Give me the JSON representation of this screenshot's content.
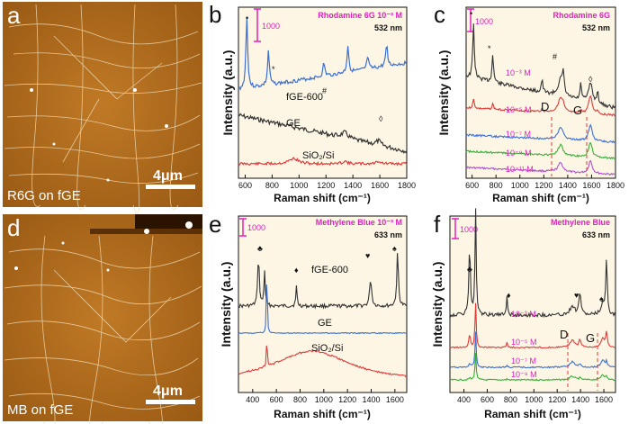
{
  "panels": {
    "a": {
      "letter": "a",
      "scale_text": "4μm",
      "caption": "R6G on fGE"
    },
    "d": {
      "letter": "d",
      "scale_text": "4μm",
      "caption": "MB on fGE"
    },
    "b": {
      "letter": "b",
      "title": "Rhodamine 6G 10⁻³ M",
      "wavelength": "532 nm",
      "scale_value": "1000"
    },
    "c": {
      "letter": "c",
      "title": "Rhodamine 6G",
      "wavelength": "532 nm",
      "scale_value": "1000"
    },
    "e": {
      "letter": "e",
      "title": "Methylene Blue 10⁻³ M",
      "wavelength": "633 nm",
      "scale_value": "1000"
    },
    "f": {
      "letter": "f",
      "title": "Methylene Blue",
      "wavelength": "633 nm",
      "scale_value": "1000"
    }
  },
  "colors": {
    "black": "#333333",
    "blue": "#3a6fd8",
    "red": "#e03a3a",
    "green": "#35b035",
    "purple": "#b050d0",
    "pink": "#e020c0",
    "afm_bg": "#b06a1c"
  },
  "chart_data": [
    {
      "id": "b",
      "type": "line",
      "xlabel": "Raman shift (cm⁻¹)",
      "ylabel": "Intensity (a.u.)",
      "xlim": [
        550,
        1800
      ],
      "xticks": [
        600,
        800,
        1000,
        1200,
        1400,
        1600,
        1800
      ],
      "series": [
        {
          "name": "fGE-600",
          "color": "blue"
        },
        {
          "name": "GE",
          "color": "black"
        },
        {
          "name": "SiO₂/Si",
          "color": "red"
        }
      ],
      "peak_labels": [
        "•",
        "*",
        "#",
        "◊"
      ]
    },
    {
      "id": "c",
      "type": "line",
      "xlabel": "Raman shift (cm⁻¹)",
      "ylabel": "Intensity (a.u.)",
      "xlim": [
        550,
        1800
      ],
      "xticks": [
        600,
        800,
        1000,
        1200,
        1400,
        1600,
        1800
      ],
      "series": [
        {
          "name": "10⁻³ M",
          "color": "black"
        },
        {
          "name": "10⁻⁵ M",
          "color": "red"
        },
        {
          "name": "10⁻⁷ M",
          "color": "blue"
        },
        {
          "name": "10⁻⁹ M",
          "color": "green"
        },
        {
          "name": "10⁻¹¹ M",
          "color": "purple"
        }
      ],
      "band_labels": [
        "D",
        "G"
      ],
      "peak_labels": [
        "•",
        "*",
        "#",
        "◊"
      ]
    },
    {
      "id": "e",
      "type": "line",
      "xlabel": "Raman shift (cm⁻¹)",
      "ylabel": "Intensity (a.u.)",
      "xlim": [
        280,
        1700
      ],
      "xticks": [
        400,
        600,
        800,
        1000,
        1200,
        1400,
        1600
      ],
      "series": [
        {
          "name": "fGE-600",
          "color": "black"
        },
        {
          "name": "GE",
          "color": "blue"
        },
        {
          "name": "SiO₂/Si",
          "color": "red"
        }
      ],
      "peak_labels": [
        "♣",
        "♦",
        "♥",
        "♠"
      ]
    },
    {
      "id": "f",
      "type": "line",
      "xlabel": "Raman shift (cm⁻¹)",
      "ylabel": "Intensity (a.u.)",
      "xlim": [
        280,
        1700
      ],
      "xticks": [
        400,
        600,
        800,
        1000,
        1200,
        1400,
        1600
      ],
      "series": [
        {
          "name": "10⁻³ M",
          "color": "black"
        },
        {
          "name": "10⁻⁵ M",
          "color": "red"
        },
        {
          "name": "10⁻⁷ M",
          "color": "blue"
        },
        {
          "name": "10⁻⁹ M",
          "color": "green"
        }
      ],
      "band_labels": [
        "D",
        "G"
      ],
      "peak_labels": [
        "♣",
        "♦",
        "♥",
        "♠"
      ]
    }
  ]
}
